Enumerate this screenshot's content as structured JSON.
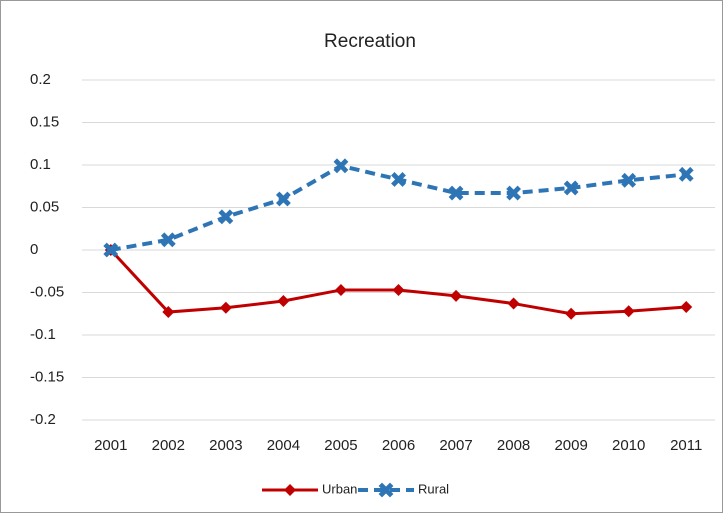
{
  "chart_data": {
    "type": "line",
    "title": "Recreation",
    "categories": [
      "2001",
      "2002",
      "2003",
      "2004",
      "2005",
      "2006",
      "2007",
      "2008",
      "2009",
      "2010",
      "2011"
    ],
    "series": [
      {
        "name": "Urban",
        "color": "#c00000",
        "line_style": "solid",
        "marker": "diamond",
        "values": [
          0,
          -0.073,
          -0.068,
          -0.06,
          -0.047,
          -0.047,
          -0.054,
          -0.063,
          -0.075,
          -0.072,
          -0.067
        ]
      },
      {
        "name": "Rural",
        "color": "#2e75b6",
        "line_style": "dashed",
        "marker": "x",
        "values": [
          0,
          0.012,
          0.039,
          0.06,
          0.099,
          0.083,
          0.067,
          0.067,
          0.073,
          0.082,
          0.089
        ]
      }
    ],
    "ylim": [
      -0.2,
      0.2
    ],
    "yticks": [
      0.2,
      0.15,
      0.1,
      0.05,
      0,
      -0.05,
      -0.1,
      -0.15,
      -0.2
    ],
    "grid": true,
    "legend": "bottom"
  }
}
